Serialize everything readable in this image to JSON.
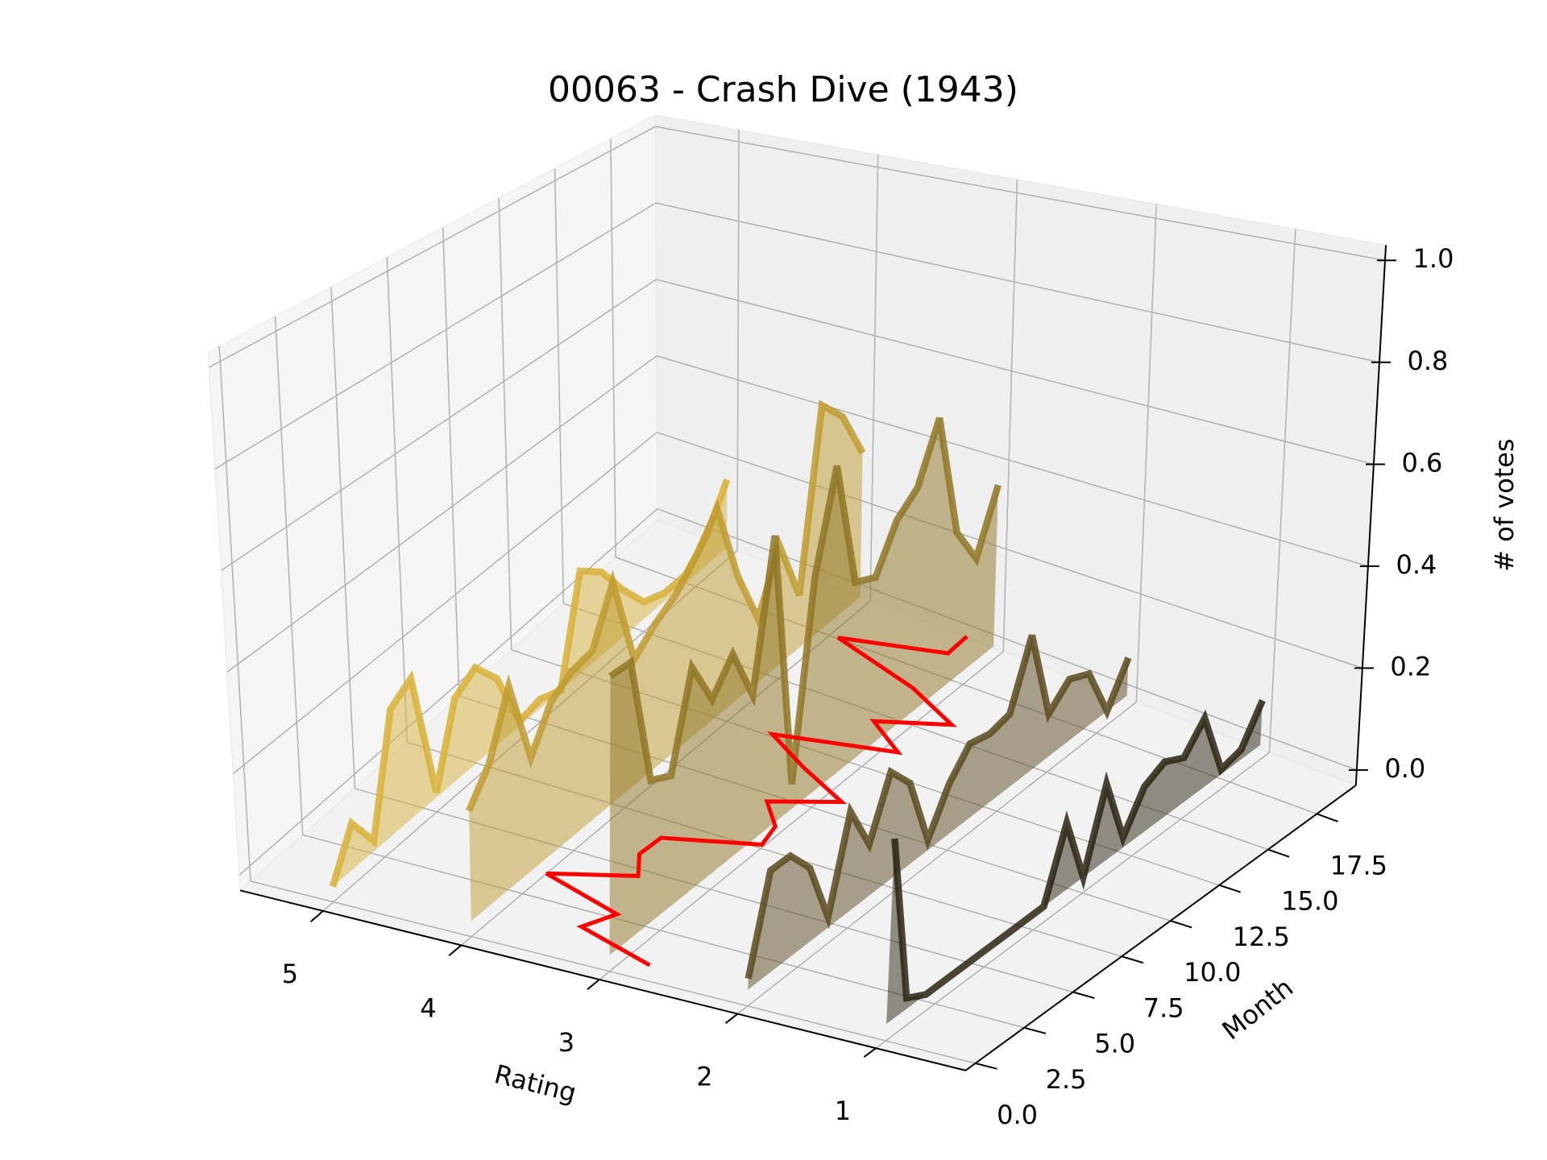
{
  "chart_data": {
    "type": "line3d",
    "title": "00063 - Crash Dive (1943)",
    "xlabel": "Rating",
    "ylabel": "Month",
    "zlabel": "# of votes",
    "xlim": [
      5.6,
      0.35
    ],
    "ylim": [
      -0.5,
      19.5
    ],
    "zlim": [
      -0.03,
      1.03
    ],
    "xticks": [
      5,
      4,
      3,
      2,
      1
    ],
    "yticks": [
      {
        "value": 0,
        "label": "0.0"
      },
      2.5,
      {
        "value": 5,
        "label": "5.0"
      },
      7.5,
      {
        "value": 10,
        "label": "10.0"
      },
      12.5,
      {
        "value": 15,
        "label": "15.0"
      },
      17.5
    ],
    "zticks": [
      {
        "value": 0,
        "label": "0.0"
      },
      0.2,
      0.4,
      0.6,
      0.8,
      {
        "value": 1,
        "label": "1.0"
      }
    ],
    "grid": true,
    "months": [
      0,
      1,
      2,
      3,
      4,
      5,
      6,
      7,
      8,
      9,
      10,
      11,
      12,
      13,
      14,
      15,
      16,
      17,
      18,
      19
    ],
    "series": [
      {
        "rating": 5,
        "color": "#d8b23a",
        "values": [
          0.0,
          0.09,
          0.02,
          0.25,
          0.28,
          0.01,
          0.17,
          0.2,
          0.14,
          0.01,
          0.02,
          0.0,
          0.23,
          0.19,
          0.11,
          0.04,
          0.02,
          0.02,
          0.07,
          0.17
        ]
      },
      {
        "rating": 4,
        "color": "#c09b30",
        "values": [
          0.21,
          0.27,
          0.39,
          0.22,
          0.3,
          0.33,
          0.34,
          0.45,
          0.26,
          0.3,
          0.33,
          0.38,
          0.45,
          0.27,
          0.14,
          0.27,
          0.12,
          0.52,
          0.46,
          0.34
        ]
      },
      {
        "rating": 3,
        "color": "#8f7626",
        "values": [
          0.52,
          0.52,
          0.27,
          0.25,
          0.43,
          0.34,
          0.4,
          0.29,
          0.58,
          0.05,
          0.44,
          0.64,
          0.37,
          0.35,
          0.44,
          0.48,
          0.6,
          0.32,
          0.23,
          0.36
        ]
      },
      {
        "rating": 2,
        "color": "#5a4a1e",
        "values": [
          0.02,
          0.19,
          0.19,
          0.14,
          0.02,
          0.19,
          0.1,
          0.21,
          0.16,
          0.02,
          0.1,
          0.15,
          0.14,
          0.15,
          0.28,
          0.09,
          0.13,
          0.11,
          0.0,
          0.08
        ]
      },
      {
        "rating": 1,
        "color": "#2a2511",
        "values": [
          0.33,
          0.02,
          0.0,
          0.0,
          0.0,
          0.0,
          0.0,
          0.0,
          0.0,
          0.13,
          0.0,
          0.15,
          0.02,
          0.09,
          0.11,
          0.09,
          0.14,
          0.01,
          0.02,
          0.09
        ]
      }
    ],
    "mean": {
      "color": "#ff0000",
      "values": [
        2.71,
        3.35,
        3.24,
        3.9,
        3.38,
        3.52,
        3.51,
        2.92,
        2.97,
        3.18,
        2.78,
        3.21,
        3.59,
        2.81,
        3.14,
        2.71,
        3.15,
        3.86,
        3.19,
        3.2
      ]
    }
  }
}
